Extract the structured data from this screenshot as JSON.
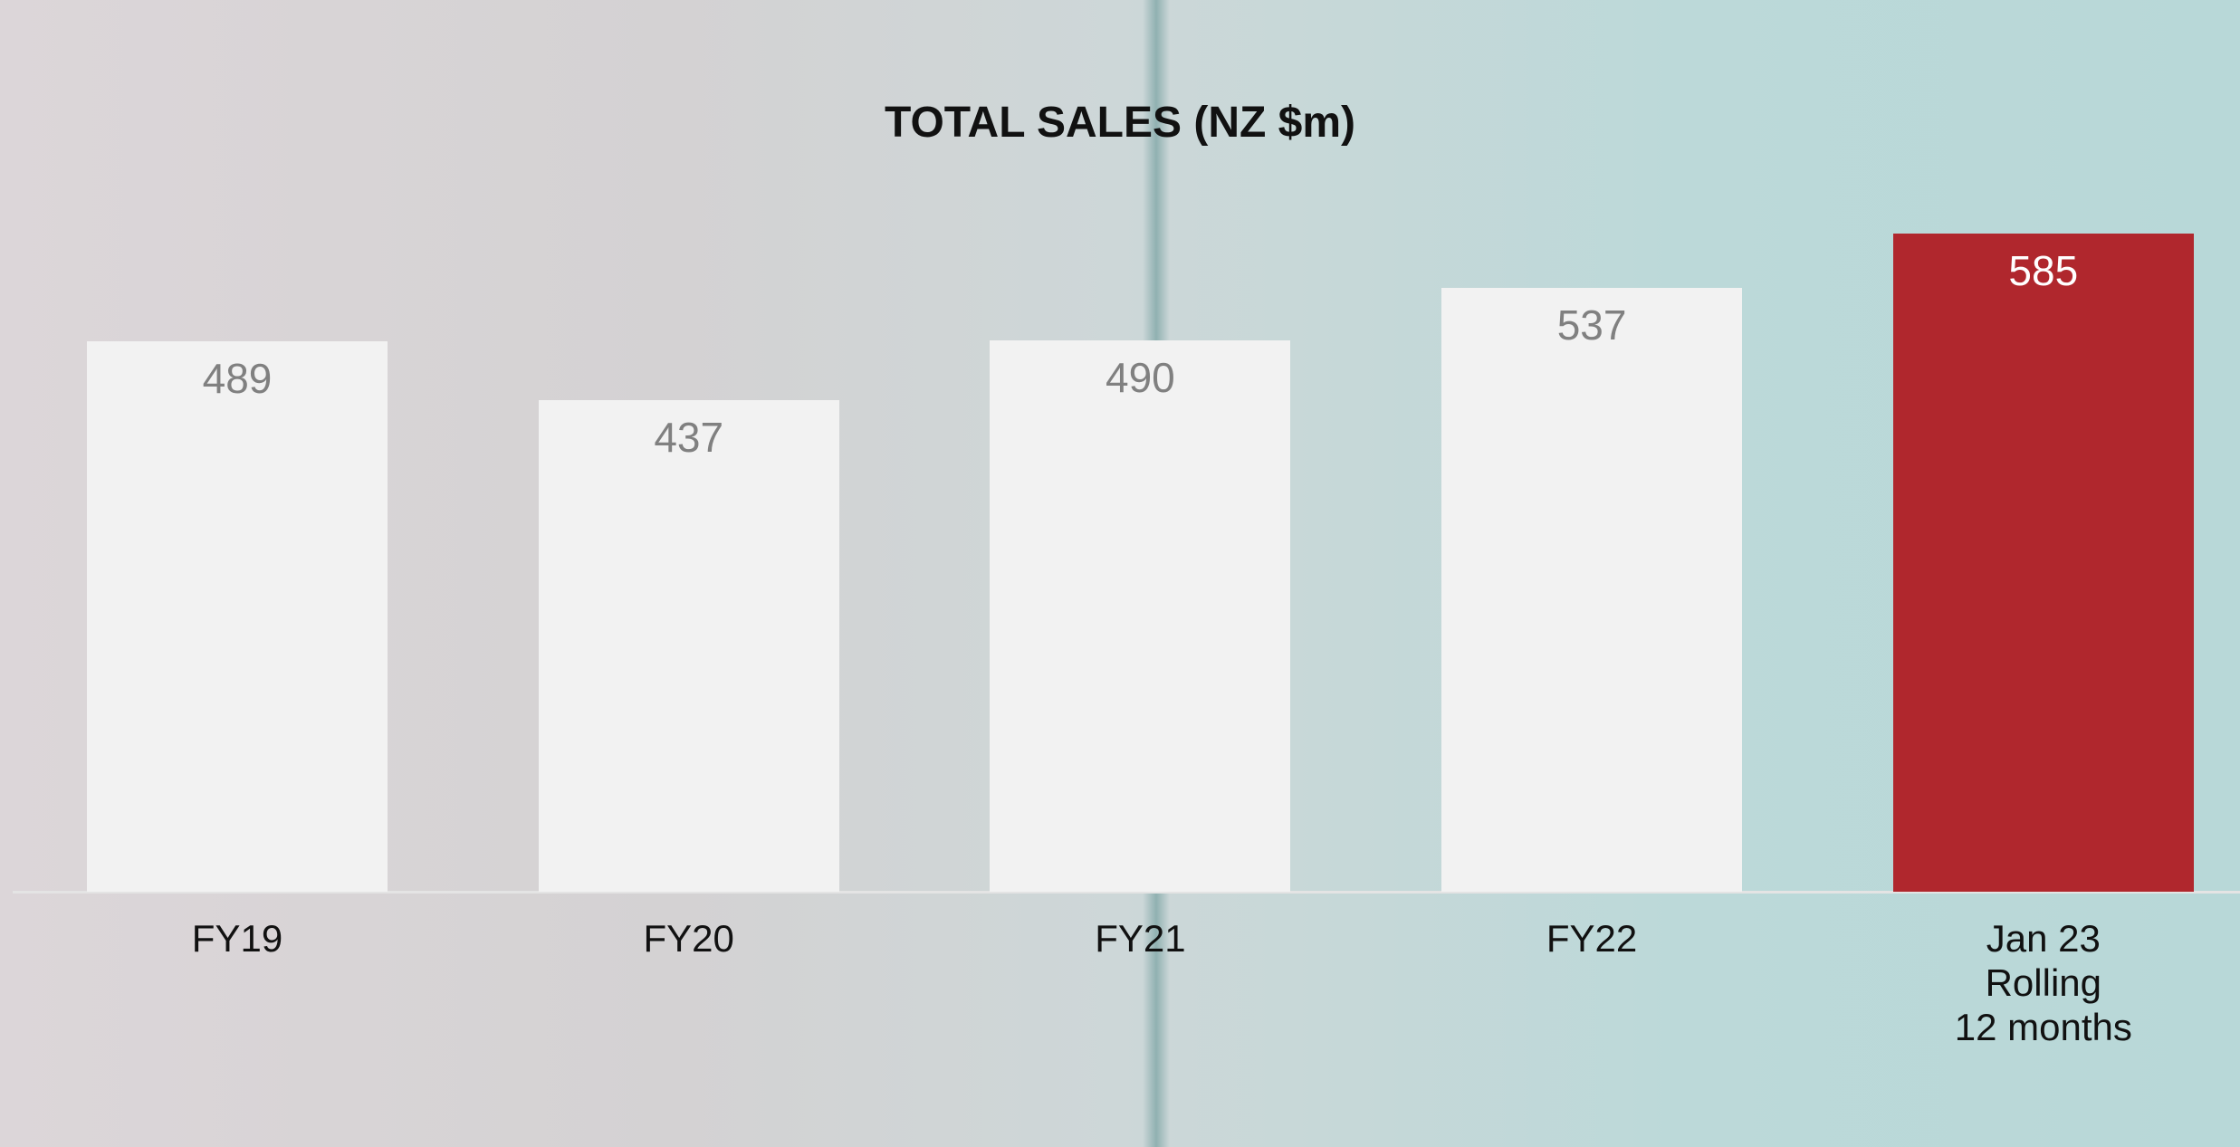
{
  "chart_data": {
    "type": "bar",
    "title": "TOTAL SALES (NZ $m)",
    "categories": [
      "FY19",
      "FY20",
      "FY21",
      "FY22",
      "Jan 23\nRolling\n12 months"
    ],
    "values": [
      489,
      437,
      490,
      537,
      585
    ],
    "colors": [
      "#f2f2f2",
      "#f2f2f2",
      "#f2f2f2",
      "#f2f2f2",
      "#b0272d"
    ],
    "label_colors": [
      "#808080",
      "#808080",
      "#808080",
      "#808080",
      "#ffffff"
    ]
  }
}
